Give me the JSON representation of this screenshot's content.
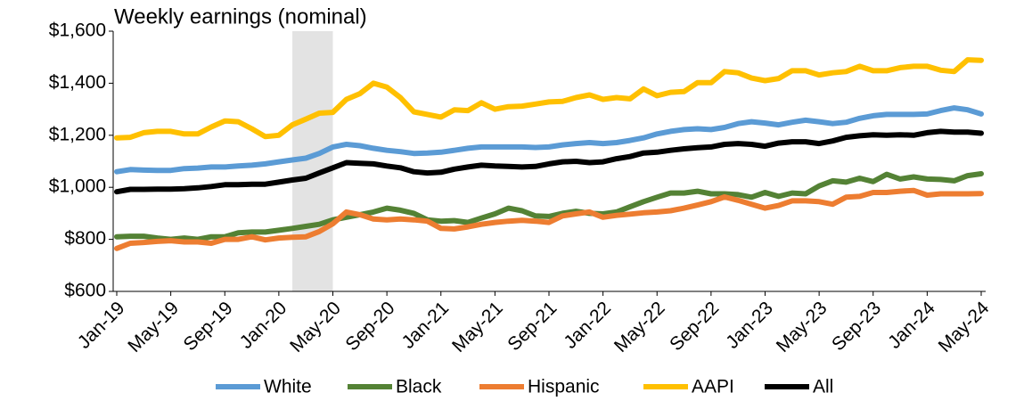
{
  "chart_data": {
    "type": "line",
    "title": "Weekly earnings (nominal)",
    "categories": [
      "Jan-19",
      null,
      null,
      null,
      "May-19",
      null,
      null,
      null,
      "Sep-19",
      null,
      null,
      null,
      "Jan-20",
      null,
      null,
      null,
      "May-20",
      null,
      null,
      null,
      "Sep-20",
      null,
      null,
      null,
      "Jan-21",
      null,
      null,
      null,
      "May-21",
      null,
      null,
      null,
      "Sep-21",
      null,
      null,
      null,
      "Jan-22",
      null,
      null,
      null,
      "May-22",
      null,
      null,
      null,
      "Sep-22",
      null,
      null,
      null,
      "Jan-23",
      null,
      null,
      null,
      "May-23",
      null,
      null,
      null,
      "Sep-23",
      null,
      null,
      null,
      "Jan-24",
      null,
      null,
      null,
      "May-24"
    ],
    "series": [
      {
        "name": "White",
        "color": "#5b9bd5",
        "values": [
          1060,
          1068,
          1066,
          1065,
          1065,
          1072,
          1074,
          1078,
          1078,
          1082,
          1085,
          1090,
          1098,
          1105,
          1112,
          1130,
          1155,
          1165,
          1160,
          1150,
          1142,
          1137,
          1130,
          1132,
          1135,
          1142,
          1150,
          1155,
          1155,
          1155,
          1155,
          1153,
          1155,
          1163,
          1168,
          1172,
          1168,
          1172,
          1180,
          1190,
          1205,
          1215,
          1222,
          1225,
          1222,
          1230,
          1245,
          1252,
          1247,
          1240,
          1250,
          1258,
          1252,
          1245,
          1250,
          1265,
          1275,
          1280,
          1280,
          1280,
          1282,
          1295,
          1305,
          1298,
          1282
        ]
      },
      {
        "name": "Black",
        "color": "#548235",
        "values": [
          810,
          812,
          812,
          805,
          800,
          805,
          800,
          810,
          810,
          825,
          828,
          828,
          835,
          842,
          850,
          858,
          875,
          885,
          895,
          905,
          920,
          912,
          900,
          875,
          870,
          872,
          865,
          882,
          898,
          920,
          910,
          890,
          888,
          900,
          908,
          900,
          898,
          905,
          925,
          945,
          962,
          978,
          978,
          985,
          975,
          975,
          972,
          962,
          980,
          965,
          978,
          975,
          1005,
          1025,
          1020,
          1035,
          1022,
          1050,
          1032,
          1040,
          1032,
          1030,
          1025,
          1045,
          1052
        ]
      },
      {
        "name": "Hispanic",
        "color": "#ed7d31",
        "values": [
          765,
          785,
          788,
          792,
          795,
          790,
          790,
          785,
          800,
          800,
          810,
          798,
          805,
          808,
          810,
          830,
          860,
          905,
          895,
          878,
          875,
          878,
          875,
          870,
          842,
          840,
          848,
          858,
          865,
          870,
          873,
          870,
          865,
          890,
          898,
          905,
          885,
          892,
          897,
          902,
          905,
          910,
          920,
          932,
          945,
          963,
          950,
          935,
          920,
          930,
          948,
          948,
          945,
          935,
          962,
          965,
          980,
          980,
          985,
          988,
          970,
          975,
          975,
          975,
          976
        ]
      },
      {
        "name": "AAPI",
        "color": "#ffc000",
        "values": [
          1190,
          1192,
          1210,
          1215,
          1215,
          1205,
          1205,
          1232,
          1255,
          1252,
          1225,
          1195,
          1200,
          1240,
          1262,
          1285,
          1288,
          1338,
          1360,
          1400,
          1385,
          1345,
          1290,
          1280,
          1270,
          1298,
          1295,
          1325,
          1300,
          1310,
          1312,
          1320,
          1328,
          1330,
          1345,
          1355,
          1338,
          1345,
          1340,
          1378,
          1352,
          1365,
          1368,
          1402,
          1402,
          1445,
          1440,
          1420,
          1410,
          1418,
          1448,
          1448,
          1432,
          1440,
          1445,
          1465,
          1448,
          1448,
          1460,
          1465,
          1465,
          1450,
          1445,
          1490,
          1488
        ]
      },
      {
        "name": "All",
        "color": "#000000",
        "values": [
          983,
          992,
          992,
          993,
          993,
          995,
          998,
          1003,
          1010,
          1010,
          1012,
          1012,
          1020,
          1028,
          1035,
          1055,
          1075,
          1095,
          1092,
          1090,
          1082,
          1075,
          1060,
          1055,
          1058,
          1070,
          1078,
          1085,
          1082,
          1080,
          1078,
          1080,
          1090,
          1098,
          1100,
          1095,
          1098,
          1110,
          1118,
          1132,
          1135,
          1142,
          1148,
          1152,
          1155,
          1165,
          1168,
          1165,
          1158,
          1170,
          1175,
          1175,
          1168,
          1178,
          1192,
          1198,
          1202,
          1200,
          1202,
          1200,
          1210,
          1215,
          1212,
          1212,
          1208
        ]
      }
    ],
    "ylim": [
      600,
      1600
    ],
    "yticks": [
      {
        "value": 600,
        "label": "$600"
      },
      {
        "value": 800,
        "label": "$800"
      },
      {
        "value": 1000,
        "label": "$1,000"
      },
      {
        "value": 1200,
        "label": "$1,200"
      },
      {
        "value": 1400,
        "label": "$1,400"
      },
      {
        "value": 1600,
        "label": "$1,600"
      }
    ],
    "shaded_range": [
      13,
      16
    ],
    "shade_color": "#e3e3e3",
    "grid": false,
    "legend": "bottom"
  }
}
